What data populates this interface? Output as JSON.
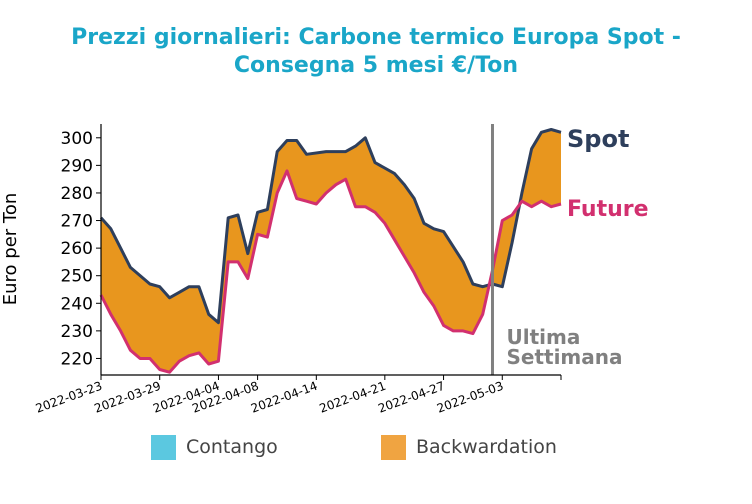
{
  "chart_data": {
    "type": "area",
    "title_line1": "Prezzi giornalieri: Carbone termico Europa Spot -",
    "title_line2": "Consegna 5 mesi €/Ton",
    "ylabel": "Euro per Ton",
    "ylim": [
      214,
      305
    ],
    "yticks": [
      220,
      230,
      240,
      250,
      260,
      270,
      280,
      290,
      300
    ],
    "xlim": [
      "2022-03-23",
      "2022-05-09"
    ],
    "xticks": [
      "2022-03-23",
      "2022-03-29",
      "2022-04-04",
      "2022-04-08",
      "2022-04-14",
      "2022-04-21",
      "2022-04-27",
      "2022-05-03"
    ],
    "marker_date": "2022-05-02",
    "marker_label_line1": "Ultima",
    "marker_label_line2": "Settimana",
    "series": [
      {
        "name": "Spot",
        "color": "#2e3f5c",
        "x": [
          "2022-03-23",
          "2022-03-24",
          "2022-03-25",
          "2022-03-26",
          "2022-03-28",
          "2022-03-29",
          "2022-03-30",
          "2022-03-31",
          "2022-04-01",
          "2022-04-02",
          "2022-04-03",
          "2022-04-04",
          "2022-04-05",
          "2022-04-06",
          "2022-04-07",
          "2022-04-08",
          "2022-04-09",
          "2022-04-10",
          "2022-04-11",
          "2022-04-12",
          "2022-04-13",
          "2022-04-15",
          "2022-04-17",
          "2022-04-18",
          "2022-04-19",
          "2022-04-20",
          "2022-04-22",
          "2022-04-23",
          "2022-04-24",
          "2022-04-25",
          "2022-04-26",
          "2022-04-27",
          "2022-04-29",
          "2022-04-30",
          "2022-05-01",
          "2022-05-02",
          "2022-05-03",
          "2022-05-04",
          "2022-05-05",
          "2022-05-06",
          "2022-05-07",
          "2022-05-08",
          "2022-05-09"
        ],
        "values": [
          271,
          267,
          260,
          253,
          247,
          246,
          242,
          244,
          246,
          246,
          236,
          233,
          271,
          272,
          258,
          273,
          274,
          295,
          299,
          299,
          294,
          295,
          295,
          297,
          300,
          291,
          287,
          283,
          278,
          269,
          267,
          266,
          255,
          247,
          246,
          247,
          246,
          262,
          280,
          296,
          302,
          303,
          302
        ]
      },
      {
        "name": "Future",
        "color": "#d2306f",
        "x": [
          "2022-03-23",
          "2022-03-24",
          "2022-03-25",
          "2022-03-26",
          "2022-03-27",
          "2022-03-28",
          "2022-03-29",
          "2022-03-30",
          "2022-03-31",
          "2022-04-01",
          "2022-04-02",
          "2022-04-03",
          "2022-04-04",
          "2022-04-05",
          "2022-04-06",
          "2022-04-07",
          "2022-04-08",
          "2022-04-09",
          "2022-04-10",
          "2022-04-11",
          "2022-04-12",
          "2022-04-13",
          "2022-04-14",
          "2022-04-15",
          "2022-04-16",
          "2022-04-17",
          "2022-04-18",
          "2022-04-19",
          "2022-04-20",
          "2022-04-21",
          "2022-04-22",
          "2022-04-23",
          "2022-04-24",
          "2022-04-25",
          "2022-04-26",
          "2022-04-27",
          "2022-04-28",
          "2022-04-29",
          "2022-04-30",
          "2022-05-01",
          "2022-05-02",
          "2022-05-03",
          "2022-05-04",
          "2022-05-05",
          "2022-05-06",
          "2022-05-07",
          "2022-05-08",
          "2022-05-09"
        ],
        "values": [
          243,
          236,
          230,
          223,
          220,
          220,
          216,
          215,
          219,
          221,
          222,
          218,
          219,
          255,
          255,
          249,
          265,
          264,
          280,
          288,
          278,
          277,
          276,
          280,
          283,
          285,
          275,
          275,
          273,
          269,
          263,
          257,
          251,
          244,
          239,
          232,
          230,
          230,
          229,
          236,
          252,
          270,
          272,
          277,
          275,
          277,
          275,
          276
        ]
      }
    ],
    "legend": [
      {
        "label": "Contango",
        "color": "#5bc8e0"
      },
      {
        "label": "Backwardation",
        "color": "#f0a441"
      }
    ],
    "fill_color": "#e8961e"
  }
}
